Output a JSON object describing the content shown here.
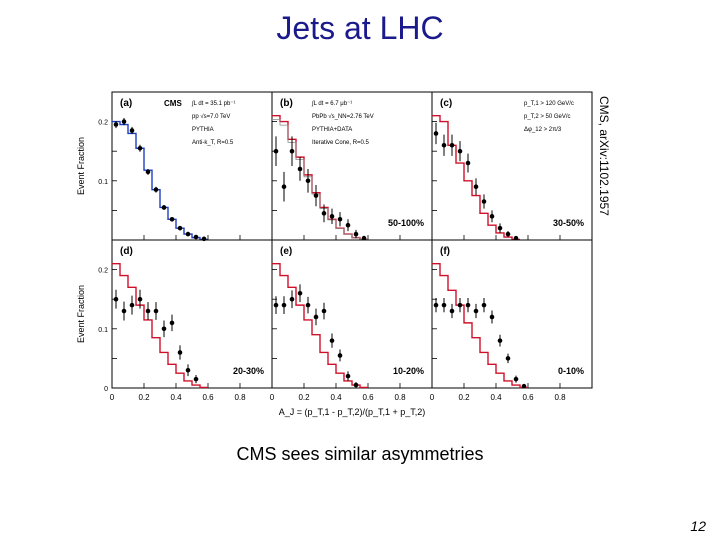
{
  "slide": {
    "title": "Jets at LHC",
    "caption": "CMS sees similar asymmetries",
    "page_number": "12",
    "reference": "CMS, arXiv:1102.1957"
  },
  "colors": {
    "title": "#1a1a8c",
    "pp_line": "#1f3fbf",
    "pythia_data": "#d0102a",
    "pythia": "#888888",
    "points": "#000000"
  },
  "chart_data": {
    "type": "histogram-grid",
    "xlabel": "A_J = (p_T,1 - p_T,2)/(p_T,1 + p_T,2)",
    "ylabel": "Event Fraction",
    "xlim": [
      0,
      1
    ],
    "ylim": [
      0,
      0.25
    ],
    "x_ticks": [
      "0",
      "0.2",
      "0.4",
      "0.6",
      "0.8"
    ],
    "y_ticks": [
      "0",
      "0.1",
      "0.2"
    ],
    "bin_edges": [
      0,
      0.05,
      0.1,
      0.15,
      0.2,
      0.25,
      0.3,
      0.35,
      0.4,
      0.45,
      0.5,
      0.55,
      0.6,
      0.65,
      0.7,
      0.75,
      0.8,
      0.85,
      0.9,
      0.95,
      1.0
    ],
    "panels": [
      {
        "label": "(a)",
        "header": "CMS",
        "legend": [
          "∫L dt = 35.1 pb⁻¹",
          "pp √s=7.0 TeV",
          "PYTHIA",
          "Anti-k_T, R=0.5"
        ],
        "centrality": "",
        "points": [
          0.195,
          0.2,
          0.185,
          0.155,
          0.115,
          0.085,
          0.055,
          0.035,
          0.02,
          0.01,
          0.005,
          0.002
        ],
        "errors": [
          0.006,
          0.006,
          0.006,
          0.006,
          0.005,
          0.005,
          0.004,
          0.003,
          0.003,
          0.002,
          0.002,
          0.001
        ],
        "mc_line": [
          0.2,
          0.195,
          0.18,
          0.155,
          0.118,
          0.085,
          0.055,
          0.035,
          0.02,
          0.01,
          0.004,
          0.001
        ],
        "mc_label": "PYTHIA"
      },
      {
        "label": "(b)",
        "header": "",
        "legend": [
          "∫L dt = 6.7 μb⁻¹",
          "PbPb √s_NN=2.76 TeV",
          "PYTHIA+DATA",
          "Iterative Cone, R=0.5"
        ],
        "centrality": "50-100%",
        "points": [
          0.15,
          0.09,
          0.15,
          0.12,
          0.1,
          0.075,
          0.045,
          0.04,
          0.035,
          0.025,
          0.01,
          0.003
        ],
        "errors": [
          0.025,
          0.025,
          0.025,
          0.02,
          0.02,
          0.018,
          0.015,
          0.013,
          0.012,
          0.01,
          0.007,
          0.004
        ],
        "mc_line": [
          0.21,
          0.2,
          0.17,
          0.14,
          0.11,
          0.08,
          0.055,
          0.035,
          0.02,
          0.01,
          0.004,
          0.001
        ],
        "mc_label": "PYTHIA+DATA"
      },
      {
        "label": "(c)",
        "header": "",
        "legend": [
          "p_T,1 > 120 GeV/c",
          "p_T,2 > 50 GeV/c",
          "Δφ_12 > 2π/3"
        ],
        "centrality": "30-50%",
        "points": [
          0.18,
          0.16,
          0.16,
          0.15,
          0.13,
          0.09,
          0.065,
          0.04,
          0.02,
          0.01,
          0.003
        ],
        "errors": [
          0.018,
          0.018,
          0.018,
          0.017,
          0.016,
          0.014,
          0.012,
          0.01,
          0.008,
          0.005,
          0.003
        ],
        "mc_line": [
          0.21,
          0.2,
          0.16,
          0.13,
          0.1,
          0.075,
          0.045,
          0.025,
          0.012,
          0.005,
          0.001
        ],
        "mc_label": ""
      },
      {
        "label": "(d)",
        "header": "",
        "legend": [],
        "centrality": "20-30%",
        "points": [
          0.15,
          0.13,
          0.14,
          0.15,
          0.13,
          0.13,
          0.1,
          0.11,
          0.06,
          0.03,
          0.015
        ],
        "errors": [
          0.016,
          0.016,
          0.016,
          0.016,
          0.015,
          0.015,
          0.014,
          0.014,
          0.012,
          0.01,
          0.007
        ],
        "mc_line": [
          0.21,
          0.19,
          0.17,
          0.14,
          0.115,
          0.085,
          0.06,
          0.04,
          0.025,
          0.012,
          0.005,
          0.001
        ],
        "mc_label": ""
      },
      {
        "label": "(e)",
        "header": "",
        "legend": [],
        "centrality": "10-20%",
        "points": [
          0.14,
          0.14,
          0.15,
          0.16,
          0.14,
          0.12,
          0.13,
          0.08,
          0.055,
          0.02,
          0.005
        ],
        "errors": [
          0.015,
          0.015,
          0.015,
          0.015,
          0.014,
          0.014,
          0.014,
          0.012,
          0.01,
          0.008,
          0.005
        ],
        "mc_line": [
          0.21,
          0.19,
          0.17,
          0.14,
          0.115,
          0.09,
          0.06,
          0.04,
          0.025,
          0.012,
          0.005,
          0.001
        ],
        "mc_label": ""
      },
      {
        "label": "(f)",
        "header": "",
        "legend": [],
        "centrality": "0-10%",
        "points": [
          0.14,
          0.14,
          0.13,
          0.14,
          0.14,
          0.13,
          0.14,
          0.12,
          0.08,
          0.05,
          0.015,
          0.003
        ],
        "errors": [
          0.012,
          0.012,
          0.012,
          0.012,
          0.012,
          0.012,
          0.012,
          0.011,
          0.01,
          0.008,
          0.006,
          0.003
        ],
        "mc_line": [
          0.21,
          0.19,
          0.165,
          0.14,
          0.11,
          0.085,
          0.06,
          0.04,
          0.025,
          0.012,
          0.005,
          0.001
        ],
        "mc_label": ""
      }
    ]
  }
}
